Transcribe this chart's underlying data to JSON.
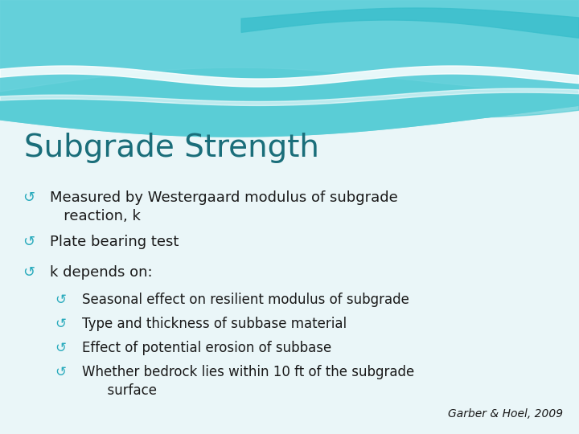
{
  "title": "Subgrade Strength",
  "title_color": "#1a6e7a",
  "title_fontsize": 28,
  "background_color": "#eaf6f8",
  "bullet_color": "#2aabbd",
  "text_color": "#1a1a1a",
  "citation": "Garber & Hoel, 2009",
  "citation_color": "#1a1a1a",
  "bullets": [
    {
      "text": "Measured by Westergaard modulus of subgrade\n   reaction, k",
      "indent": 0
    },
    {
      "text": "Plate bearing test",
      "indent": 0
    },
    {
      "text": "k depends on:",
      "indent": 0
    },
    {
      "text": "Seasonal effect on resilient modulus of subgrade",
      "indent": 1
    },
    {
      "text": "Type and thickness of subbase material",
      "indent": 1
    },
    {
      "text": "Effect of potential erosion of subbase",
      "indent": 1
    },
    {
      "text": "Whether bedrock lies within 10 ft of the subgrade\n      surface",
      "indent": 1
    }
  ],
  "font_size_bullet": 13,
  "font_size_sub_bullet": 12,
  "wave_top_color": "#5acdd8",
  "wave_mid_color": "#7adde8",
  "wave_light_color": "#aaeaf0",
  "wave_white": "#ffffff"
}
